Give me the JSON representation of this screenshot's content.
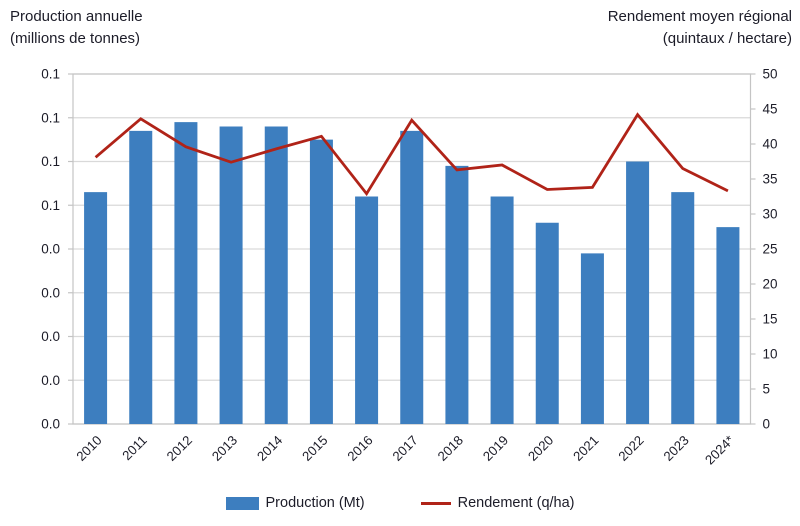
{
  "left_axis_header": {
    "line1": "Production annuelle",
    "line2": "(millions de tonnes)"
  },
  "right_axis_header": {
    "line1": "Rendement moyen régional",
    "line2": "(quintaux / hectare)"
  },
  "legend": {
    "production": "Production (Mt)",
    "rendement": "Rendement (q/ha)"
  },
  "colors": {
    "bar": "#3d7ebf",
    "line": "#b02318",
    "grid": "#d9d9d9",
    "border": "#c4c4c4",
    "text": "#1c1c28"
  },
  "chart_data": {
    "type": "combo-bar-line",
    "categories": [
      "2010",
      "2011",
      "2012",
      "2013",
      "2014",
      "2015",
      "2016",
      "2017",
      "2018",
      "2019",
      "2020",
      "2021",
      "2022",
      "2023",
      "2024*"
    ],
    "series": [
      {
        "name": "Production (Mt)",
        "type": "bar",
        "axis": "left",
        "color": "#3d7ebf",
        "values": [
          0.053,
          0.067,
          0.069,
          0.068,
          0.068,
          0.065,
          0.052,
          0.067,
          0.059,
          0.052,
          0.046,
          0.039,
          0.06,
          0.053,
          0.045
        ]
      },
      {
        "name": "Rendement (q/ha)",
        "type": "line",
        "axis": "right",
        "color": "#b02318",
        "values": [
          38.1,
          43.6,
          39.6,
          37.4,
          39.3,
          41.1,
          32.9,
          43.4,
          36.3,
          37.0,
          33.5,
          33.8,
          44.2,
          36.5,
          33.3
        ]
      }
    ],
    "left_axis": {
      "title": "Production annuelle (millions de tonnes)",
      "min": 0,
      "max": 0.08,
      "tick_labels_displayed": [
        "0.1",
        "0.1",
        "0.1",
        "0.1",
        "0.0",
        "0.0",
        "0.0",
        "0.0",
        "0.0"
      ]
    },
    "right_axis": {
      "title": "Rendement moyen régional (quintaux / hectare)",
      "min": 0,
      "max": 50,
      "tick_labels": [
        "50",
        "45",
        "40",
        "35",
        "30",
        "25",
        "20",
        "15",
        "10",
        "5",
        "0"
      ]
    },
    "grid": true,
    "legend_position": "bottom"
  }
}
